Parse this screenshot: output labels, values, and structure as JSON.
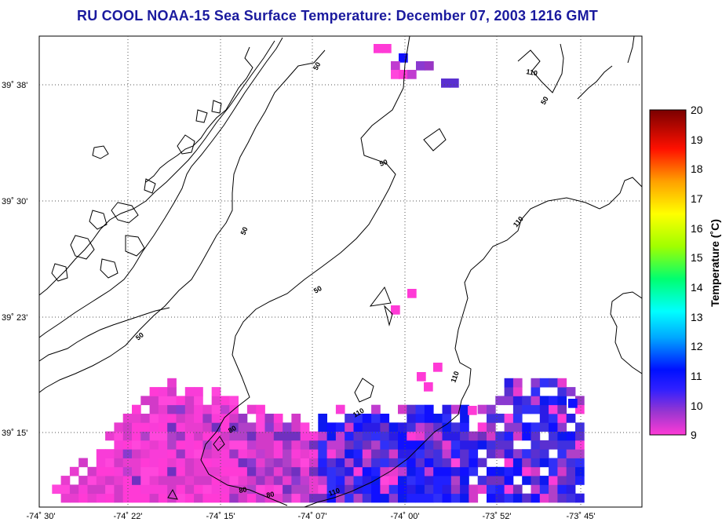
{
  "title": "RU COOL  NOAA-15  Sea Surface Temperature:  December 07, 2003 1216 GMT",
  "map": {
    "lat_labels": [
      "39˚ 38'",
      "39˚ 30'",
      "39˚ 23'",
      "39˚ 15'"
    ],
    "lon_labels": [
      "-74˚ 30'",
      "-74˚ 22'",
      "-74˚ 15'",
      "-74˚ 07'",
      "-74˚ 00'",
      "-73˚ 52'",
      "-73˚ 45'"
    ],
    "contour_labels": [
      "50",
      "50",
      "50",
      "50",
      "50",
      "50",
      "80",
      "80",
      "80",
      "110",
      "110",
      "110",
      "110",
      "110"
    ]
  },
  "colorbar": {
    "label": "Temperature (˚C)",
    "ticks": [
      "20",
      "19",
      "18",
      "17",
      "16",
      "15",
      "14",
      "13",
      "12",
      "11",
      "10",
      "9"
    ],
    "min": 9,
    "max": 20,
    "colors": [
      "#ff3ad6",
      "#7a30c8",
      "#1010ff",
      "#00a0ff",
      "#00ffff",
      "#00ff60",
      "#aaff00",
      "#ffff00",
      "#ffa000",
      "#ff2000",
      "#c00000",
      "#7a0000"
    ]
  }
}
